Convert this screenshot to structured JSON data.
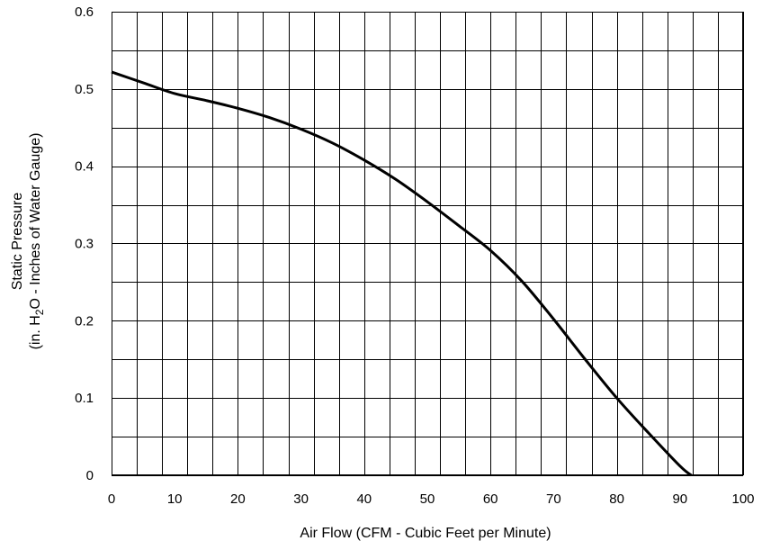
{
  "chart_data": {
    "type": "line",
    "title": "",
    "xlabel": "Air Flow (CFM -  Cubic Feet per Minute)",
    "ylabel": {
      "line1": "Static Pressure",
      "line2_pre": "(in. H",
      "line2_sub": "2",
      "line2_post": "O - Inches of Water Gauge)"
    },
    "xlim": [
      0,
      100
    ],
    "ylim": [
      0,
      0.6
    ],
    "xticks": [
      0,
      10,
      20,
      30,
      40,
      50,
      60,
      70,
      80,
      90,
      100
    ],
    "yticks": [
      0,
      0.1,
      0.2,
      0.3,
      0.4,
      0.5,
      0.6
    ],
    "xtick_labels": [
      "0",
      "10",
      "20",
      "30",
      "40",
      "50",
      "60",
      "70",
      "80",
      "90",
      "100"
    ],
    "ytick_labels": [
      "0",
      "0.1",
      "0.2",
      "0.3",
      "0.4",
      "0.5",
      "0.6"
    ],
    "grid": {
      "x_step": 4,
      "y_step": 0.05
    },
    "series": [
      {
        "line_color": "#000000",
        "x": [
          0,
          5,
          10,
          15,
          20,
          25,
          30,
          35,
          40,
          45,
          50,
          55,
          60,
          65,
          70,
          75,
          80,
          85,
          90,
          91.8
        ],
        "y": [
          0.522,
          0.508,
          0.494,
          0.485,
          0.475,
          0.463,
          0.448,
          0.43,
          0.408,
          0.383,
          0.354,
          0.323,
          0.291,
          0.251,
          0.202,
          0.15,
          0.1,
          0.055,
          0.012,
          0.0
        ]
      }
    ]
  }
}
